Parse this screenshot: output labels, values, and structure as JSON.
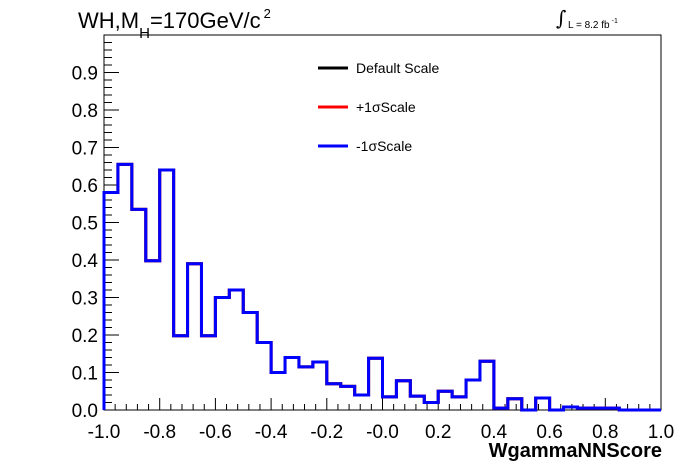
{
  "title": {
    "main": "WH,M",
    "sub": "H",
    "rest": "=170GeV/c",
    "sup": "2"
  },
  "luminosity": {
    "integral": "∫",
    "text": "L = 8.2 fb",
    "sup": "-1"
  },
  "chart_data": {
    "type": "line",
    "xlabel": "WgammaNNScore",
    "ylabel": "",
    "xlim": [
      -1.0,
      1.0
    ],
    "ylim": [
      0.0,
      1.0
    ],
    "x_ticks": [
      "-1.0",
      "-0.8",
      "-0.6",
      "-0.4",
      "-0.2",
      "-0.0",
      "0.2",
      "0.4",
      "0.6",
      "0.8",
      "1.0"
    ],
    "y_ticks": [
      "0.0",
      "0.1",
      "0.2",
      "0.3",
      "0.4",
      "0.5",
      "0.6",
      "0.7",
      "0.8",
      "0.9"
    ],
    "bin_edges": [
      -1.0,
      -0.95,
      -0.9,
      -0.85,
      -0.8,
      -0.75,
      -0.7,
      -0.65,
      -0.6,
      -0.55,
      -0.5,
      -0.45,
      -0.4,
      -0.35,
      -0.3,
      -0.25,
      -0.2,
      -0.15,
      -0.1,
      -0.05,
      0.0,
      0.05,
      0.1,
      0.15,
      0.2,
      0.25,
      0.3,
      0.35,
      0.4,
      0.45,
      0.5,
      0.55,
      0.6,
      0.65,
      0.7,
      0.75,
      0.8,
      0.85,
      0.9,
      0.95,
      1.0
    ],
    "grid": false,
    "legend_position": "top-center",
    "series": [
      {
        "name": "Default Scale",
        "color": "#000000",
        "values": [
          0.58,
          0.655,
          0.535,
          0.398,
          0.64,
          0.198,
          0.39,
          0.198,
          0.3,
          0.32,
          0.26,
          0.18,
          0.1,
          0.14,
          0.115,
          0.128,
          0.07,
          0.063,
          0.04,
          0.138,
          0.035,
          0.078,
          0.037,
          0.02,
          0.05,
          0.035,
          0.08,
          0.13,
          0.005,
          0.03,
          0.0,
          0.032,
          0.0,
          0.008,
          0.005,
          0.005,
          0.005,
          0.0,
          0.0,
          0.0
        ]
      },
      {
        "name": "+1σScale",
        "color": "#ff0000",
        "values": [
          0.58,
          0.655,
          0.535,
          0.398,
          0.64,
          0.198,
          0.39,
          0.198,
          0.3,
          0.32,
          0.26,
          0.18,
          0.1,
          0.14,
          0.115,
          0.128,
          0.07,
          0.063,
          0.04,
          0.138,
          0.035,
          0.078,
          0.037,
          0.02,
          0.05,
          0.035,
          0.08,
          0.13,
          0.005,
          0.03,
          0.0,
          0.032,
          0.0,
          0.008,
          0.005,
          0.005,
          0.005,
          0.0,
          0.0,
          0.0
        ]
      },
      {
        "name": "-1σScale",
        "color": "#0000ff",
        "values": [
          0.58,
          0.655,
          0.535,
          0.398,
          0.64,
          0.198,
          0.39,
          0.198,
          0.3,
          0.32,
          0.26,
          0.18,
          0.1,
          0.14,
          0.115,
          0.128,
          0.07,
          0.063,
          0.04,
          0.138,
          0.035,
          0.078,
          0.037,
          0.02,
          0.05,
          0.035,
          0.08,
          0.13,
          0.005,
          0.03,
          0.0,
          0.032,
          0.0,
          0.008,
          0.005,
          0.005,
          0.005,
          0.0,
          0.0,
          0.0
        ]
      }
    ]
  }
}
